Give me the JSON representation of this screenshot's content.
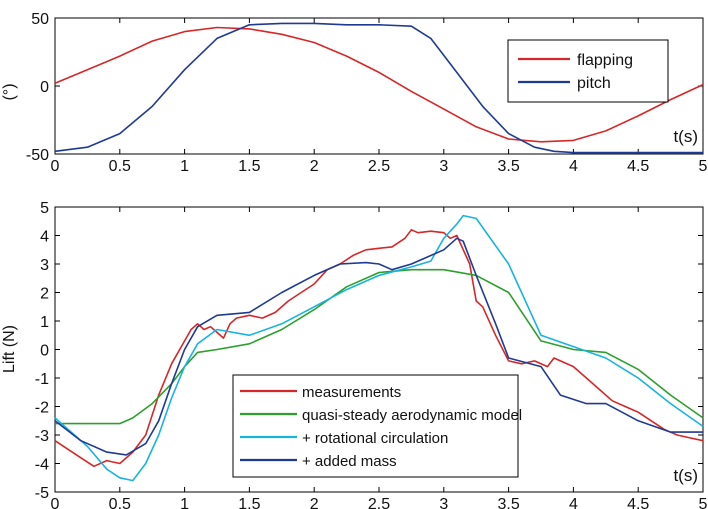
{
  "chart_data": [
    {
      "type": "line",
      "xlim": [
        0,
        5
      ],
      "ylim": [
        -50,
        50
      ],
      "ylabel": "(°)",
      "x_axis_label": "t(s)",
      "xticks": [
        "0",
        "0.5",
        "1",
        "1.5",
        "2",
        "2.5",
        "3",
        "3.5",
        "4",
        "4.5",
        "5"
      ],
      "yticks": [
        "-50",
        "0",
        "50"
      ],
      "legend_position": "top-right",
      "series": [
        {
          "name": "flapping",
          "color": "#d62728",
          "x": [
            0,
            0.25,
            0.5,
            0.75,
            1.0,
            1.25,
            1.5,
            1.75,
            2.0,
            2.25,
            2.5,
            2.75,
            3.0,
            3.25,
            3.5,
            3.75,
            4.0,
            4.25,
            4.5,
            4.75,
            5.0
          ],
          "y": [
            2,
            12,
            22,
            33,
            40,
            43,
            42,
            38,
            32,
            22,
            10,
            -4,
            -17,
            -30,
            -39,
            -41,
            -40,
            -33,
            -22,
            -10,
            1
          ]
        },
        {
          "name": "pitch",
          "color": "#1f3a93",
          "x": [
            0,
            0.25,
            0.5,
            0.75,
            1.0,
            1.25,
            1.5,
            1.75,
            2.0,
            2.25,
            2.5,
            2.75,
            2.9,
            3.1,
            3.3,
            3.5,
            3.7,
            3.85,
            4.0,
            4.5,
            5.0
          ],
          "y": [
            -48,
            -45,
            -35,
            -15,
            12,
            35,
            45,
            46,
            46,
            45,
            45,
            44,
            35,
            10,
            -15,
            -35,
            -45,
            -48,
            -49,
            -49,
            -49
          ]
        }
      ]
    },
    {
      "type": "line",
      "xlim": [
        0,
        5
      ],
      "ylim": [
        -5,
        5
      ],
      "ylabel": "Lift (N)",
      "x_axis_label": "t(s)",
      "xticks": [
        "0",
        "0.5",
        "1",
        "1.5",
        "2",
        "2.5",
        "3",
        "3.5",
        "4",
        "4.5",
        "5"
      ],
      "yticks": [
        "-5",
        "-4",
        "-3",
        "-2",
        "-1",
        "0",
        "1",
        "2",
        "3",
        "4",
        "5"
      ],
      "legend_position": "bottom-left",
      "series": [
        {
          "name": "measurements",
          "color": "#d62728",
          "x": [
            0,
            0.1,
            0.2,
            0.3,
            0.4,
            0.5,
            0.6,
            0.7,
            0.8,
            0.9,
            1.0,
            1.05,
            1.1,
            1.15,
            1.2,
            1.25,
            1.3,
            1.35,
            1.4,
            1.5,
            1.6,
            1.7,
            1.8,
            1.9,
            2.0,
            2.1,
            2.2,
            2.3,
            2.4,
            2.5,
            2.6,
            2.7,
            2.75,
            2.8,
            2.9,
            3.0,
            3.05,
            3.1,
            3.2,
            3.25,
            3.3,
            3.4,
            3.5,
            3.6,
            3.7,
            3.8,
            3.85,
            3.9,
            4.0,
            4.1,
            4.2,
            4.3,
            4.4,
            4.5,
            4.6,
            4.7,
            4.8,
            4.9,
            5.0
          ],
          "y": [
            -3.2,
            -3.5,
            -3.8,
            -4.1,
            -3.9,
            -4.0,
            -3.6,
            -3.0,
            -1.6,
            -0.5,
            0.3,
            0.7,
            0.9,
            0.7,
            0.8,
            0.6,
            0.4,
            0.9,
            1.1,
            1.2,
            1.1,
            1.3,
            1.7,
            2.0,
            2.3,
            2.8,
            3.0,
            3.3,
            3.5,
            3.55,
            3.6,
            3.9,
            4.2,
            4.1,
            4.15,
            4.1,
            3.9,
            4.0,
            3.0,
            1.7,
            1.5,
            0.5,
            -0.4,
            -0.5,
            -0.4,
            -0.6,
            -0.3,
            -0.4,
            -0.6,
            -1.0,
            -1.4,
            -1.8,
            -2.0,
            -2.2,
            -2.5,
            -2.8,
            -3.0,
            -3.1,
            -3.2
          ]
        },
        {
          "name": "quasi-steady aerodynamic model",
          "color": "#2ca02c",
          "x": [
            0,
            0.25,
            0.5,
            0.6,
            0.75,
            0.9,
            1.0,
            1.1,
            1.25,
            1.5,
            1.75,
            2.0,
            2.25,
            2.5,
            2.75,
            3.0,
            3.25,
            3.5,
            3.75,
            4.0,
            4.25,
            4.5,
            4.75,
            5.0
          ],
          "y": [
            -2.6,
            -2.6,
            -2.6,
            -2.4,
            -1.9,
            -1.2,
            -0.6,
            -0.1,
            0.0,
            0.2,
            0.7,
            1.4,
            2.2,
            2.7,
            2.8,
            2.8,
            2.6,
            2.0,
            0.3,
            0.0,
            -0.1,
            -0.7,
            -1.6,
            -2.4
          ]
        },
        {
          "name": "+ rotational circulation",
          "color": "#17b4e0",
          "x": [
            0,
            0.25,
            0.4,
            0.5,
            0.6,
            0.7,
            0.8,
            0.9,
            1.0,
            1.1,
            1.25,
            1.5,
            1.75,
            2.0,
            2.25,
            2.5,
            2.75,
            2.9,
            3.0,
            3.1,
            3.15,
            3.25,
            3.5,
            3.75,
            4.0,
            4.25,
            4.5,
            4.75,
            5.0
          ],
          "y": [
            -2.4,
            -3.4,
            -4.2,
            -4.5,
            -4.6,
            -4.0,
            -3.0,
            -1.7,
            -0.6,
            0.2,
            0.7,
            0.5,
            0.9,
            1.5,
            2.1,
            2.6,
            2.9,
            3.1,
            3.9,
            4.4,
            4.7,
            4.6,
            3.0,
            0.5,
            0.1,
            -0.3,
            -1.0,
            -1.9,
            -2.7
          ]
        },
        {
          "name": "+ added mass",
          "color": "#1f3a93",
          "x": [
            0,
            0.2,
            0.4,
            0.55,
            0.7,
            0.8,
            0.9,
            1.0,
            1.1,
            1.25,
            1.5,
            1.75,
            2.0,
            2.2,
            2.4,
            2.5,
            2.6,
            2.75,
            3.0,
            3.1,
            3.15,
            3.25,
            3.4,
            3.5,
            3.75,
            3.9,
            4.1,
            4.25,
            4.5,
            4.75,
            5.0
          ],
          "y": [
            -2.5,
            -3.2,
            -3.6,
            -3.7,
            -3.3,
            -2.5,
            -1.2,
            0.0,
            0.8,
            1.2,
            1.3,
            2.0,
            2.6,
            3.0,
            3.05,
            3.0,
            2.8,
            3.0,
            3.5,
            3.9,
            3.8,
            2.6,
            0.9,
            -0.3,
            -0.6,
            -1.6,
            -1.9,
            -1.9,
            -2.5,
            -2.9,
            -2.9
          ]
        }
      ]
    }
  ]
}
